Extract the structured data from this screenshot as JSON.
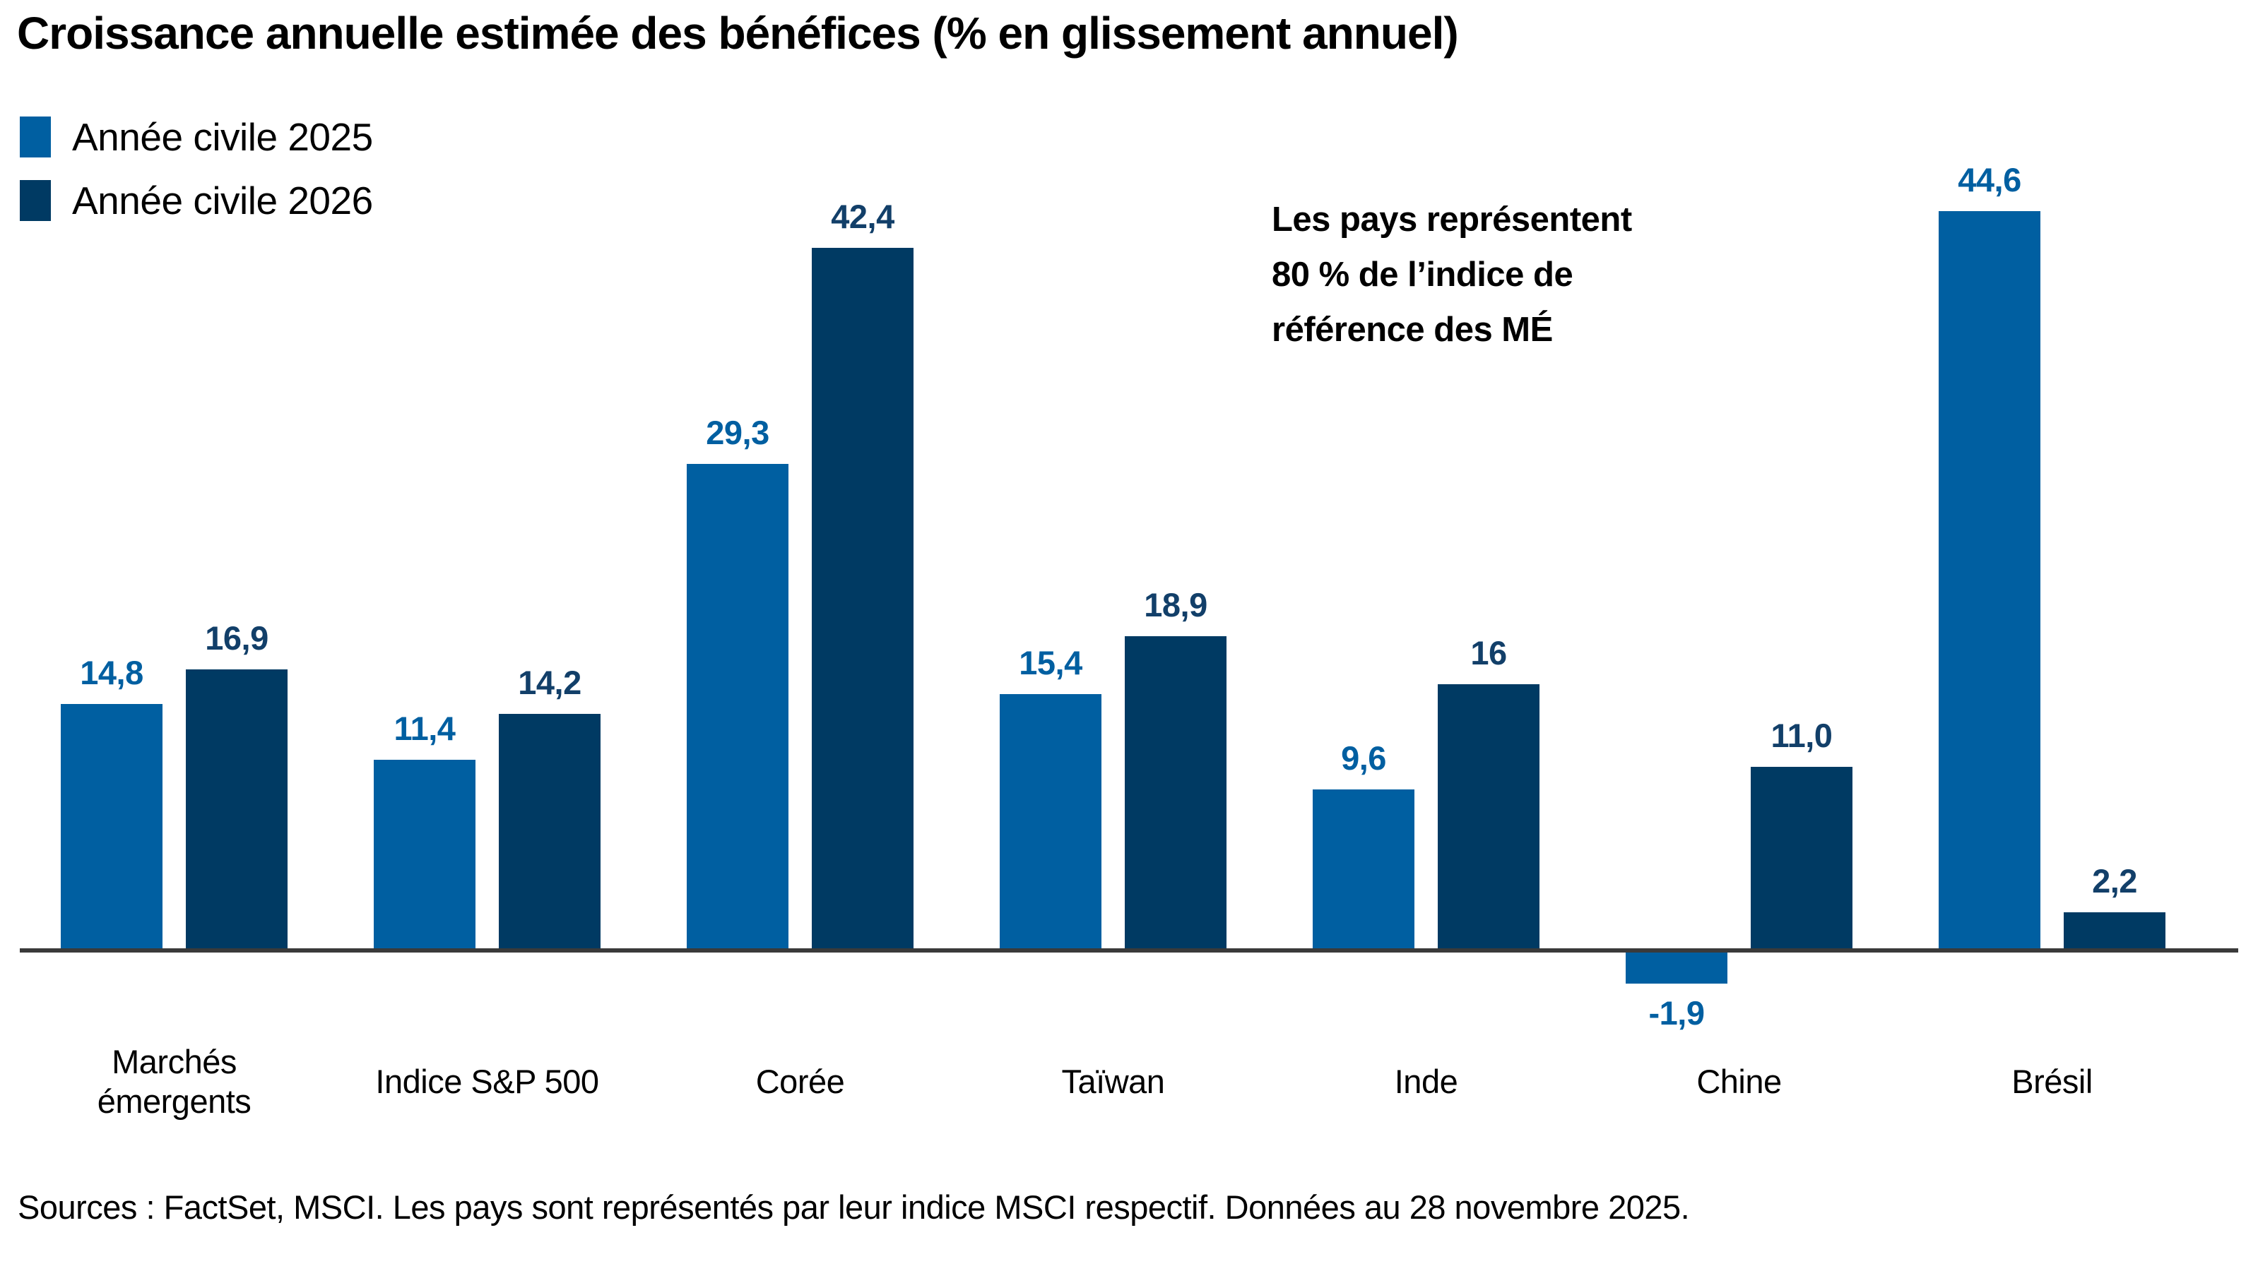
{
  "header": {
    "title": "Croissance annuelle estimée des bénéfices (% en glissement annuel)"
  },
  "legend": {
    "items": [
      {
        "label": "Année civile 2025",
        "color": "#005FA1"
      },
      {
        "label": "Année civile 2026",
        "color": "#003A63"
      }
    ]
  },
  "annotation": {
    "text": "Les pays représentent\n80 % de l’indice de\nréférence des MÉ"
  },
  "source": {
    "text": "Sources : FactSet, MSCI. Les pays sont représentés par leur indice MSCI respectif. Données au 28 novembre 2025."
  },
  "chart_data": {
    "type": "bar",
    "title": "Croissance annuelle estimée des bénéfices (% en glissement annuel)",
    "categories": [
      "Marchés\némergents",
      "Indice S&P 500",
      "Corée",
      "Taïwan",
      "Inde",
      "Chine",
      "Brésil"
    ],
    "series": [
      {
        "name": "Année civile 2025",
        "color": "#005FA1",
        "label_color": "#005FA1",
        "values": [
          14.8,
          11.4,
          29.3,
          15.4,
          9.6,
          -1.9,
          44.6
        ],
        "value_labels": [
          "14,8",
          "11,4",
          "29,3",
          "15,4",
          "9,6",
          "-1,9",
          "44,6"
        ]
      },
      {
        "name": "Année civile 2026",
        "color": "#003A63",
        "label_color": "#123F69",
        "values": [
          16.9,
          14.2,
          42.4,
          18.9,
          16,
          11.0,
          2.2
        ],
        "value_labels": [
          "16,9",
          "14,2",
          "42,4",
          "18,9",
          "16",
          "11,0",
          "2,2"
        ]
      }
    ],
    "ylim": [
      -5,
      48
    ],
    "grid": false,
    "legend_position": "top-left",
    "value_labels_shown": true,
    "axis_color": "#3a3a3a",
    "annotation": "Les pays représentent 80 % de l’indice de référence des MÉ"
  }
}
